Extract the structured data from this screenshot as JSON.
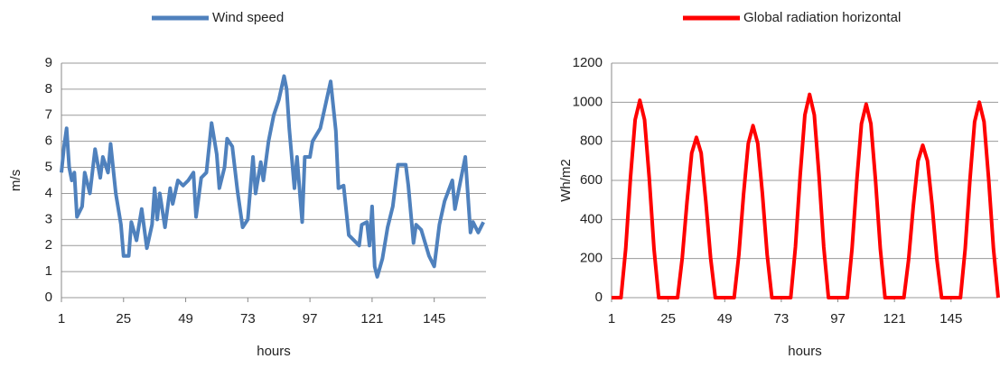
{
  "chart_data": [
    {
      "type": "line",
      "xlabel": "hours",
      "ylabel": "m/s",
      "xlim": [
        1,
        165
      ],
      "ylim": [
        0,
        9
      ],
      "xticks": [
        1,
        25,
        49,
        73,
        97,
        121,
        145
      ],
      "yticks": [
        0,
        1,
        2,
        3,
        4,
        5,
        6,
        7,
        8,
        9
      ],
      "grid": true,
      "legend": "top",
      "x": [
        1,
        2,
        3,
        4,
        5,
        6,
        7,
        9,
        10,
        12,
        14,
        16,
        17,
        19,
        20,
        22,
        24,
        25,
        27,
        28,
        30,
        32,
        34,
        36,
        37,
        38,
        39,
        41,
        43,
        44,
        46,
        48,
        50,
        52,
        53,
        55,
        57,
        59,
        61,
        62,
        64,
        65,
        67,
        69,
        71,
        73,
        75,
        76,
        78,
        79,
        81,
        83,
        85,
        87,
        88,
        89,
        91,
        92,
        94,
        95,
        97,
        98,
        101,
        103,
        105,
        107,
        108,
        110,
        112,
        114,
        116,
        117,
        119,
        120,
        121,
        122,
        123,
        125,
        127,
        129,
        131,
        134,
        135,
        137,
        138,
        140,
        143,
        145,
        147,
        149,
        152,
        153,
        155,
        157,
        159,
        160,
        162,
        164
      ],
      "series": [
        {
          "name": "Wind speed",
          "color": "#4f81bd",
          "values": [
            4.8,
            5.8,
            6.5,
            5,
            4.5,
            4.8,
            3.1,
            3.5,
            4.8,
            4,
            5.7,
            4.6,
            5.4,
            4.8,
            5.9,
            4,
            2.8,
            1.6,
            1.6,
            2.9,
            2.2,
            3.4,
            1.9,
            2.8,
            4.2,
            3,
            4,
            2.7,
            4.2,
            3.6,
            4.5,
            4.3,
            4.5,
            4.8,
            3.1,
            4.6,
            4.8,
            6.7,
            5.5,
            4.2,
            5,
            6.1,
            5.8,
            4.1,
            2.7,
            3,
            5.4,
            4,
            5.2,
            4.5,
            6,
            7,
            7.6,
            8.5,
            8,
            6.5,
            4.2,
            5.4,
            2.9,
            5.4,
            5.4,
            6,
            6.5,
            7.4,
            8.3,
            6.4,
            4.2,
            4.3,
            2.4,
            2.2,
            2,
            2.8,
            2.9,
            2,
            3.5,
            1.2,
            0.8,
            1.5,
            2.7,
            3.5,
            5.1,
            5.1,
            4.3,
            2.1,
            2.8,
            2.6,
            1.6,
            1.2,
            2.8,
            3.7,
            4.5,
            3.4,
            4.4,
            5.4,
            2.5,
            2.9,
            2.5,
            2.9
          ]
        }
      ]
    },
    {
      "type": "line",
      "xlabel": "hours",
      "ylabel": "Wh/m2",
      "xlim": [
        1,
        165
      ],
      "ylim": [
        0,
        1200
      ],
      "xticks": [
        1,
        25,
        49,
        73,
        97,
        121,
        145
      ],
      "yticks": [
        0,
        200,
        400,
        600,
        800,
        1000,
        1200
      ],
      "grid": true,
      "legend": "top",
      "x": [
        1,
        5,
        7,
        9,
        11,
        13,
        15,
        17,
        19,
        21,
        29,
        31,
        33,
        35,
        37,
        39,
        41,
        43,
        45,
        53,
        55,
        57,
        59,
        61,
        63,
        65,
        67,
        69,
        77,
        79,
        81,
        83,
        85,
        87,
        89,
        91,
        93,
        101,
        103,
        105,
        107,
        109,
        111,
        113,
        115,
        117,
        125,
        127,
        129,
        131,
        133,
        135,
        137,
        139,
        141,
        149,
        151,
        153,
        155,
        157,
        159,
        161,
        163,
        165
      ],
      "series": [
        {
          "name": "Global radiation horizontal",
          "color": "#ff0000",
          "values": [
            0,
            0,
            250,
            610,
            910,
            1010,
            910,
            610,
            250,
            0,
            0,
            205,
            490,
            740,
            820,
            740,
            490,
            205,
            0,
            0,
            220,
            530,
            790,
            880,
            790,
            530,
            220,
            0,
            0,
            260,
            625,
            935,
            1040,
            935,
            625,
            260,
            0,
            0,
            250,
            595,
            890,
            990,
            890,
            595,
            250,
            0,
            0,
            195,
            470,
            700,
            780,
            700,
            470,
            195,
            0,
            0,
            250,
            600,
            900,
            1000,
            900,
            600,
            250,
            0
          ]
        }
      ]
    }
  ]
}
